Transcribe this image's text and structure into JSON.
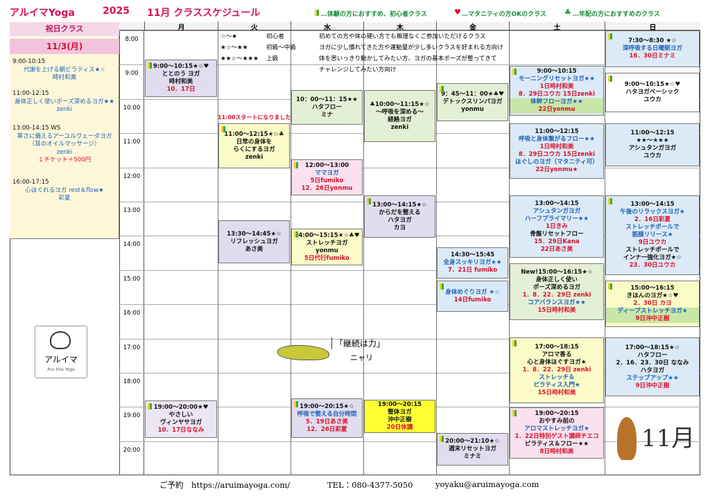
{
  "header": {
    "brand": "アルイマYoga",
    "year": "2025",
    "title": "11月 クラススケジュール",
    "legend": [
      "…体験の方におすすめ、初心者クラス",
      "…マタニティの方OKのクラス",
      "…年配の方におすすめのクラス"
    ]
  },
  "days": [
    "月",
    "火",
    "水",
    "木",
    "金",
    "土",
    "日"
  ],
  "times": [
    "8:00",
    "9:00",
    "10:00",
    "11:00",
    "12:00",
    "13:00",
    "14:00",
    "15:00",
    "16:00",
    "17:00",
    "18:00",
    "19:00",
    "20:00"
  ],
  "sidebar": {
    "title": "祝日クラス",
    "date": "11/3(月)",
    "items": [
      {
        "lines": [
          "9:00-10:15",
          "代謝を上げる朝ピラティス★☆",
          "時村和美"
        ]
      },
      {
        "lines": [
          "11:00-12:15",
          "身体正しく使いポーズ深めるヨガ★★",
          "zenki"
        ]
      },
      {
        "lines": [
          "13:00-14:15 WS",
          "寒さに備えるアーユルヴェーダヨガ",
          "（耳のオイルマッサージ）",
          "zenki",
          "１チケット＋500円"
        ]
      },
      {
        "lines": [
          "16:00-17:15",
          "心ほぐれるヨガ rest＆flow★",
          "彩夏"
        ]
      }
    ],
    "logo": [
      "アルイマ",
      "Aru Ima Yoga"
    ]
  },
  "levels": [
    {
      "stars": "☆～★",
      "name": "初心者",
      "desc": [
        "初めての方や体の硬い方でも無理なくご参加いただけるクラス"
      ]
    },
    {
      "stars": "★☆～★★",
      "name": "初級～中級",
      "desc": [
        "ヨガに少し慣れてきた方や運動量が少し多いクラスを好まれる方向け"
      ]
    },
    {
      "stars": "★★☆～★★★",
      "name": "上級",
      "desc": [
        "体を思いっきり動かしてみたい方、ヨガの基本ポーズが整ってきて",
        "チャレンジしてみたい方向け"
      ]
    }
  ],
  "notice": "11:00スタートになりました",
  "schedule": [
    [
      {
        "lines": [
          "9:00～10:15★☆♥",
          "ととのう ヨガ",
          "時村和美",
          "10．17日"
        ]
      },
      {
        "lines": [
          "19:00～20:00★♥",
          "やさしい",
          "ヴィンヤサヨガ",
          "10．17日ななみ"
        ]
      }
    ],
    [
      {
        "lines": [
          "11:00～12:15★☆♣",
          "日常の身体を",
          "らくにするヨガ",
          "zenki"
        ]
      },
      {
        "lines": [
          "13:30～14:45★☆",
          "リフレッシュヨガ",
          "あさ美"
        ]
      }
    ],
    [
      {
        "lines": [
          "10：00～11：15★★",
          "ハタフロー",
          "ミナ"
        ]
      },
      {
        "lines": [
          "12:00～13:00",
          "ママヨガ",
          "5日fumiko",
          "12．26日yonmu"
        ]
      },
      {
        "lines": [
          "14:00～15:15★☆♣♥",
          "ストレッチヨガ",
          "yonmu",
          "5日代行fumiko"
        ]
      },
      {
        "lines": [
          "19:00～20:15★☆",
          "呼吸で整える自分時間",
          "5．19日あさ美",
          "12．26日彩夏"
        ]
      }
    ],
    [
      {
        "lines": [
          "♣10:00～11:15★☆",
          "～呼吸を深める～",
          "経絡ヨガ",
          "zenki"
        ]
      },
      {
        "lines": [
          "13:00～14:15★☆",
          "からだを整える",
          "ハタヨガ",
          "カヨ"
        ]
      },
      {
        "lines": [
          "19:00～20:15",
          "整体ヨガ",
          "沖中正樹",
          "20日休講"
        ]
      }
    ],
    [
      {
        "lines": [
          "9：45～11：00★♣♥",
          "デトックスリンパヨガ",
          "yonmu"
        ]
      },
      {
        "lines": [
          "14:30～15:45",
          "全身スッキリヨガ★★",
          "7．21日 fumiko"
        ]
      },
      {
        "lines": [
          "身体めぐりヨガ ★☆",
          "14日fumiko"
        ]
      },
      {
        "lines": [
          "20:00～21:10★☆",
          "週末リセットヨガ",
          "ミナミ"
        ]
      }
    ],
    [
      {
        "lines": [
          "9:00～10:15",
          "モーニングリセットヨガ★★",
          "1日時村和美",
          "8．29日ユウカ 15日zenki",
          "体幹フローヨガ★★",
          "22日yonmu"
        ]
      },
      {
        "lines": [
          "11:00～12:15",
          "呼吸と身体繋がるフロー★★",
          "1日時村和美",
          "8．29日ユウカ 15日zenki",
          "ほぐしのヨガ（マタニティ可）",
          "22日yonmu★"
        ]
      },
      {
        "lines": [
          "13:00～14:15",
          "アシュタンガヨガ",
          "ハーフプライマリー★★",
          "1日きみ",
          "骨盤リセットフロー",
          "15．29日Kana",
          "22日あさ美"
        ]
      },
      {
        "lines": [
          "New!15:00～16:15★☆",
          "身体正しく使い",
          "ポーズ深めるヨガ",
          "1．8．22．29日 zenki",
          "コアバランスヨガ★★",
          "15日時村和美"
        ]
      },
      {
        "lines": [
          "17:00～18:15",
          "アロマ香る",
          "心と身体ほぐすヨガ★",
          "1．8．22．29日 zenki",
          "ストレッチ＆",
          "ピラティス入門★",
          "15日時村和美"
        ]
      },
      {
        "lines": [
          "19:00～20:15",
          "おやすみ前の",
          "アロマストレッチヨガ★",
          "1．22日特別ゲスト講師チエコ",
          "ピラティス＆フロー★★",
          "8日時村和美"
        ]
      }
    ],
    [
      {
        "lines": [
          "7:30～8:30 ★☆",
          "深呼吸する日曜朝ヨガ",
          "16．30日ミナミ"
        ]
      },
      {
        "lines": [
          "9:00～10:15★☆♥",
          "ハタヨガベーシック",
          "ユウカ"
        ]
      },
      {
        "lines": [
          "11:00～12:15",
          "★★～★★★",
          "アシュタンガヨガ",
          "ユウカ"
        ]
      },
      {
        "lines": [
          "13:00～14:15",
          "午後のリラックスヨガ★",
          "2．16日彩夏",
          "ストレッチポールで",
          "筋膜リリース★",
          "9日ユウカ",
          "ストレッチポールで",
          "インナー強化ヨガ★☆",
          "23．30日ユウカ"
        ]
      },
      {
        "lines": [
          "15:00～16:15",
          "きほんのヨガ★☆♥",
          "2．30日 カヨ",
          "ディープストレッチヨガ★",
          "9日沖中正樹"
        ]
      },
      {
        "lines": [
          "17:00～18:15★☆",
          "ハタフロー",
          "2．16．23．30日 ななみ",
          "ハタヨガ",
          "ステップアップ★★",
          "9日沖中正樹"
        ]
      }
    ]
  ],
  "mascot": [
    "「継続は力」",
    "ニャリ"
  ],
  "deco": "11月",
  "footer": [
    "ご予約　https://aruimayoga.com/",
    "TEL：080-4377-5050",
    "yoyaku@aruimayoga.com"
  ]
}
